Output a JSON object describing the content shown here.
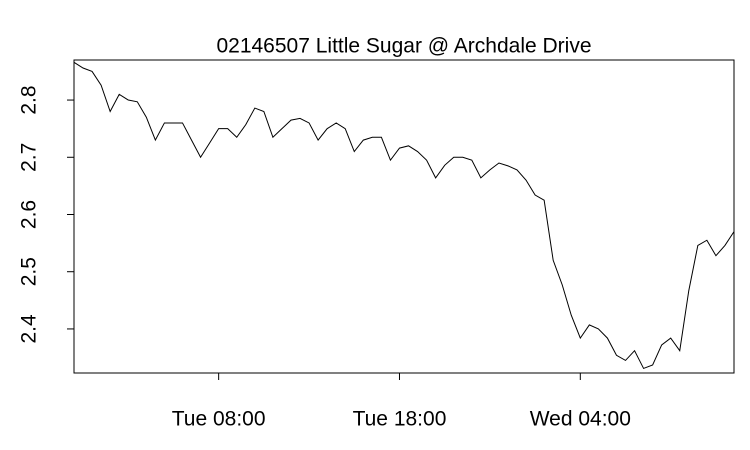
{
  "chart_data": {
    "type": "line",
    "title": "02146507 Little Sugar @ Archdale Drive",
    "x": [
      "Tue 00:00",
      "Tue 00:30",
      "Tue 01:00",
      "Tue 01:30",
      "Tue 02:00",
      "Tue 02:30",
      "Tue 03:00",
      "Tue 03:30",
      "Tue 04:00",
      "Tue 04:30",
      "Tue 05:00",
      "Tue 05:30",
      "Tue 06:00",
      "Tue 06:30",
      "Tue 07:00",
      "Tue 07:30",
      "Tue 08:00",
      "Tue 08:30",
      "Tue 09:00",
      "Tue 09:30",
      "Tue 10:00",
      "Tue 10:30",
      "Tue 11:00",
      "Tue 11:30",
      "Tue 12:00",
      "Tue 12:30",
      "Tue 13:00",
      "Tue 13:30",
      "Tue 14:00",
      "Tue 14:30",
      "Tue 15:00",
      "Tue 15:30",
      "Tue 16:00",
      "Tue 16:30",
      "Tue 17:00",
      "Tue 17:30",
      "Tue 18:00",
      "Tue 18:30",
      "Tue 19:00",
      "Tue 19:30",
      "Tue 20:00",
      "Tue 20:30",
      "Tue 21:00",
      "Tue 21:30",
      "Tue 22:00",
      "Tue 22:30",
      "Tue 23:00",
      "Tue 23:30",
      "Wed 00:00",
      "Wed 00:30",
      "Wed 01:00",
      "Wed 01:30",
      "Wed 02:00",
      "Wed 02:30",
      "Wed 03:00",
      "Wed 03:30",
      "Wed 04:00",
      "Wed 04:30",
      "Wed 05:00",
      "Wed 05:30",
      "Wed 06:00",
      "Wed 06:30",
      "Wed 07:00",
      "Wed 07:30",
      "Wed 08:00",
      "Wed 08:30",
      "Wed 09:00",
      "Wed 09:30",
      "Wed 10:00",
      "Wed 10:30",
      "Wed 11:00",
      "Wed 11:30",
      "Wed 12:00",
      "Wed 12:30"
    ],
    "values": [
      2.866,
      2.856,
      2.85,
      2.826,
      2.78,
      2.81,
      2.8,
      2.797,
      2.77,
      2.73,
      2.76,
      2.76,
      2.76,
      2.73,
      2.7,
      2.725,
      2.75,
      2.75,
      2.735,
      2.757,
      2.786,
      2.78,
      2.735,
      2.75,
      2.765,
      2.768,
      2.76,
      2.73,
      2.75,
      2.76,
      2.75,
      2.71,
      2.73,
      2.735,
      2.735,
      2.695,
      2.716,
      2.72,
      2.71,
      2.695,
      2.664,
      2.686,
      2.7,
      2.7,
      2.695,
      2.664,
      2.678,
      2.69,
      2.685,
      2.678,
      2.66,
      2.634,
      2.625,
      2.52,
      2.477,
      2.424,
      2.384,
      2.407,
      2.4,
      2.384,
      2.354,
      2.345,
      2.362,
      2.331,
      2.337,
      2.372,
      2.384,
      2.362,
      2.467,
      2.546,
      2.555,
      2.528,
      2.546,
      2.57
    ],
    "color": "#000000",
    "xlim": [
      "Tue 00:00",
      "Wed 12:30"
    ],
    "xticks": [
      "Tue 08:00",
      "Tue 18:00",
      "Wed 04:00"
    ],
    "ylim": [
      2.323,
      2.87
    ],
    "yticks": [
      2.4,
      2.5,
      2.6,
      2.7,
      2.8
    ]
  }
}
